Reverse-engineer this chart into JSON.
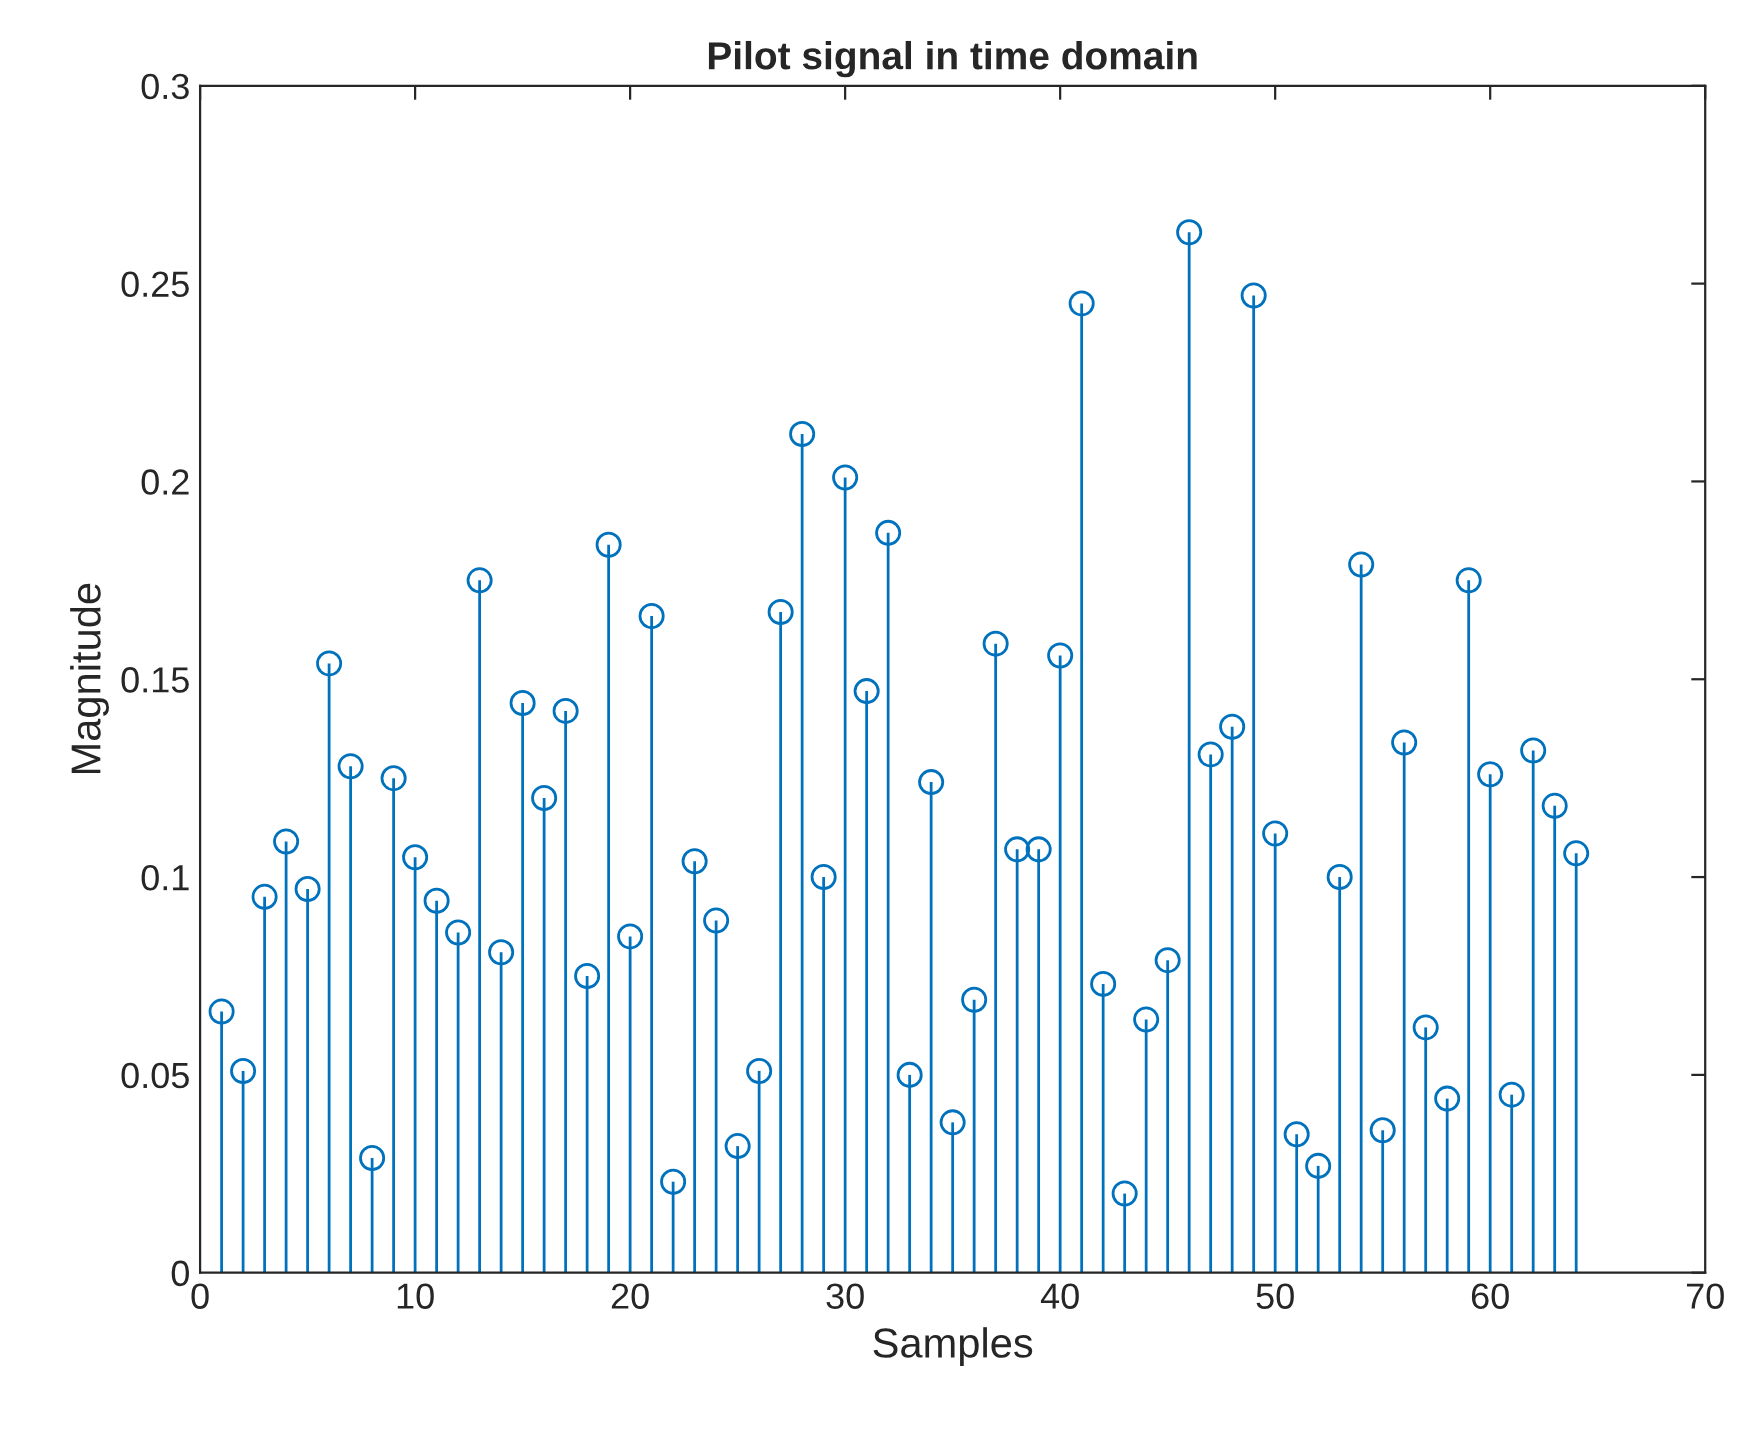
{
  "chart_data": {
    "type": "lollipop",
    "title": "Pilot signal in time domain",
    "xlabel": "Samples",
    "ylabel": "Magnitude",
    "x": [
      1,
      2,
      3,
      4,
      5,
      6,
      7,
      8,
      9,
      10,
      11,
      12,
      13,
      14,
      15,
      16,
      17,
      18,
      19,
      20,
      21,
      22,
      23,
      24,
      25,
      26,
      27,
      28,
      29,
      30,
      31,
      32,
      33,
      34,
      35,
      36,
      37,
      38,
      39,
      40,
      41,
      42,
      43,
      44,
      45,
      46,
      47,
      48,
      49,
      50,
      51,
      52,
      53,
      54,
      55,
      56,
      57,
      58,
      59,
      60,
      61,
      62,
      63,
      64
    ],
    "series": [
      {
        "color": "#0072bd",
        "values": [
          0.066,
          0.051,
          0.095,
          0.109,
          0.097,
          0.154,
          0.128,
          0.029,
          0.125,
          0.105,
          0.094,
          0.086,
          0.175,
          0.081,
          0.144,
          0.12,
          0.142,
          0.075,
          0.184,
          0.085,
          0.166,
          0.023,
          0.104,
          0.089,
          0.032,
          0.051,
          0.167,
          0.212,
          0.1,
          0.201,
          0.147,
          0.187,
          0.05,
          0.124,
          0.038,
          0.069,
          0.159,
          0.107,
          0.107,
          0.156,
          0.245,
          0.073,
          0.02,
          0.064,
          0.079,
          0.263,
          0.131,
          0.138,
          0.247,
          0.111,
          0.035,
          0.027,
          0.1,
          0.179,
          0.036,
          0.134,
          0.062,
          0.044,
          0.175,
          0.126,
          0.045,
          0.132,
          0.118,
          0.106
        ]
      }
    ],
    "xlim": [
      0,
      70
    ],
    "xticks": [
      0,
      10,
      20,
      30,
      40,
      50,
      60,
      70
    ],
    "ylim": [
      0,
      0.3
    ],
    "yticks": [
      0,
      0.05,
      0.1,
      0.15,
      0.2,
      0.25,
      0.3
    ],
    "marker": "circle",
    "grid": false,
    "legend": false
  }
}
